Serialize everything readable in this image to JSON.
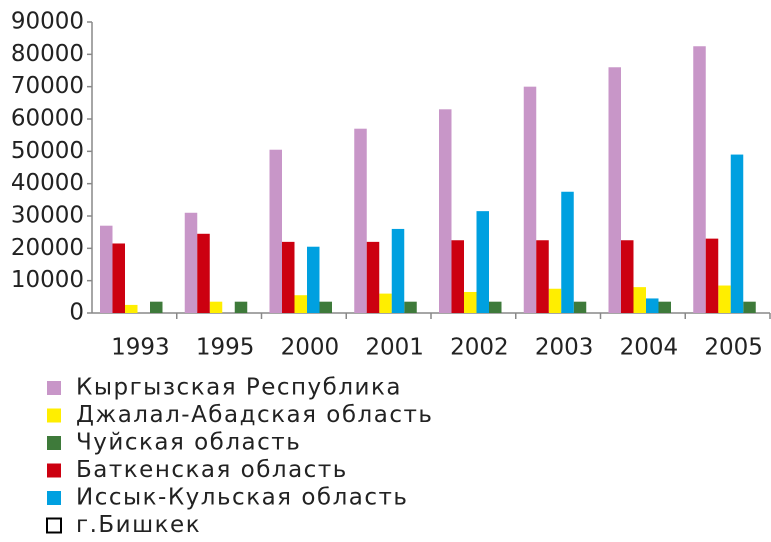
{
  "chart_data": {
    "type": "bar",
    "categories": [
      "1993",
      "1995",
      "2000",
      "2001",
      "2002",
      "2003",
      "2004",
      "2005"
    ],
    "series": [
      {
        "name": "Кыргызская Республика",
        "color": "#c896c8",
        "values": [
          27000,
          31000,
          50500,
          57000,
          63000,
          70000,
          76000,
          82500
        ]
      },
      {
        "name": "Джалал-Абадская область",
        "color": "#ffee00",
        "values": [
          2500,
          3500,
          5500,
          6000,
          6500,
          7500,
          8000,
          8500
        ]
      },
      {
        "name": "Чуйская область",
        "color": "#3e7a3a",
        "values": [
          3500,
          3500,
          3500,
          3500,
          3500,
          3500,
          3500,
          3500
        ]
      },
      {
        "name": "Баткенская область",
        "color": "#cc0010",
        "values": [
          21500,
          24500,
          22000,
          22000,
          22500,
          22500,
          22500,
          23000
        ]
      },
      {
        "name": "Иссык-Кульская область",
        "color": "#00a0e0",
        "values": [
          null,
          null,
          20500,
          26000,
          31500,
          37500,
          4500,
          49000
        ]
      },
      {
        "name": "г.Бишкек",
        "color": "#ffffff",
        "values": [
          null,
          null,
          null,
          null,
          null,
          null,
          null,
          null
        ]
      }
    ],
    "ylim": [
      0,
      90000
    ],
    "yticks": [
      0,
      10000,
      20000,
      30000,
      40000,
      50000,
      60000,
      70000,
      80000,
      90000
    ],
    "grid": false,
    "legend": "bottom"
  }
}
